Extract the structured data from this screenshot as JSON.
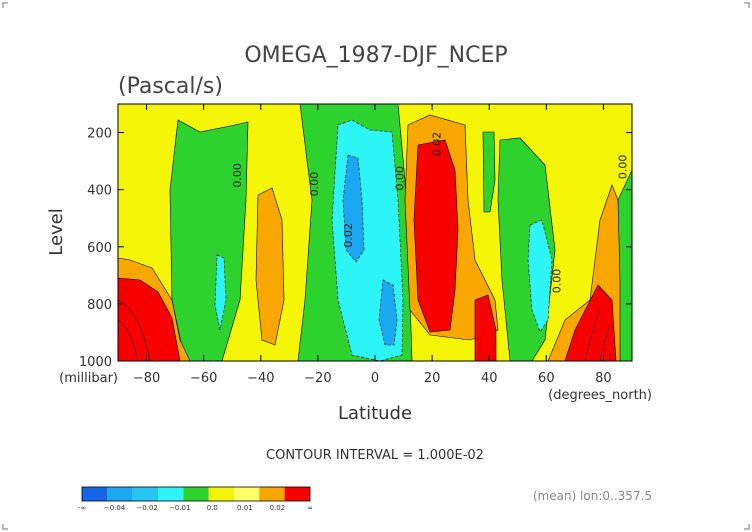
{
  "chart_data": {
    "type": "contour",
    "title": "OMEGA_1987-DJF_NCEP",
    "subtitle": "(Pascal/s)",
    "xlabel": "Latitude",
    "xunits": "(degrees_north)",
    "ylabel": "Level",
    "yunits": "(millibar)",
    "xlim": [
      -90,
      90
    ],
    "ylim": [
      1000,
      100
    ],
    "x_ticks": [
      -80,
      -60,
      -40,
      -20,
      0,
      20,
      40,
      60,
      80
    ],
    "x_tick_labels": [
      "−80",
      "−60",
      "−40",
      "−20",
      "0",
      "20",
      "40",
      "60",
      "80"
    ],
    "y_ticks": [
      200,
      400,
      600,
      800,
      1000
    ],
    "y_tick_labels": [
      "200",
      "400",
      "600",
      "800",
      "1000"
    ],
    "contour_interval_text": "CONTOUR INTERVAL = 1.000E-02",
    "footer_note": "(mean) lon:0..357.5",
    "contour_labels": [
      {
        "text": "0.00",
        "lat": -47,
        "lev": 350
      },
      {
        "text": "0.00",
        "lat": -20,
        "lev": 380
      },
      {
        "text": "0.00",
        "lat": 10,
        "lev": 360
      },
      {
        "text": "0.00",
        "lat": 88,
        "lev": 320
      },
      {
        "text": "0.00",
        "lat": 65,
        "lev": 720
      },
      {
        "text": "0.02",
        "lat": 23,
        "lev": 240
      },
      {
        "text": "0.02",
        "lat": -8,
        "lev": 560
      }
    ],
    "levels": [
      -0.04,
      -0.03,
      -0.02,
      -0.01,
      0.0,
      0.01,
      0.02
    ],
    "colorbar": {
      "colors": [
        "#1565e8",
        "#1aa8f0",
        "#27c6f2",
        "#2ef5f5",
        "#2ed22e",
        "#f5f507",
        "#ffff6a",
        "#f7a700",
        "#f80000"
      ],
      "labels": [
        "-∞",
        "−0.04",
        "−0.02",
        "−0.01",
        "0.0",
        "0.01",
        "0.02",
        "∞"
      ]
    }
  }
}
